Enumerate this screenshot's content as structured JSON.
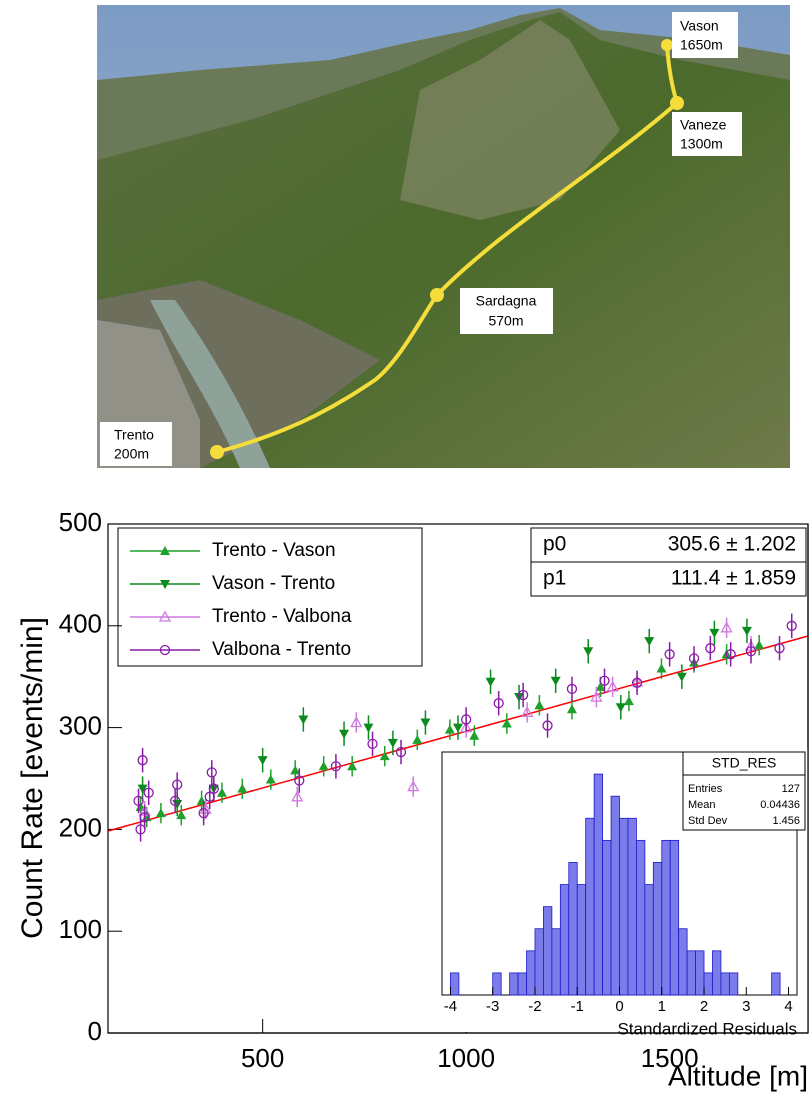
{
  "photo": {
    "labels": [
      {
        "name": "Vason",
        "altitude": "1650m"
      },
      {
        "name": "Vaneze",
        "altitude": "1300m"
      },
      {
        "name": "Sardagna",
        "altitude": "570m"
      },
      {
        "name": "Trento",
        "altitude": "200m"
      }
    ]
  },
  "chart_data": [
    {
      "type": "scatter",
      "xlabel": "Altitude [m]",
      "ylabel": "Count Rate [events/min]",
      "xlim": [
        120,
        1840
      ],
      "ylim": [
        0,
        500
      ],
      "xticks": [
        500,
        1000,
        1500
      ],
      "yticks": [
        0,
        100,
        200,
        300,
        400,
        500
      ],
      "series": [
        {
          "name": "Trento - Vason",
          "color": "#1fa02a",
          "marker": "triangle-up",
          "x": [
            200,
            215,
            250,
            300,
            350,
            400,
            450,
            520,
            580,
            650,
            720,
            800,
            880,
            960,
            1020,
            1100,
            1180,
            1260,
            1330,
            1400,
            1480,
            1560,
            1640,
            1720
          ],
          "values": [
            222,
            212,
            216,
            214,
            228,
            236,
            240,
            249,
            258,
            262,
            262,
            272,
            288,
            298,
            292,
            304,
            322,
            318,
            340,
            326,
            358,
            364,
            372,
            381
          ],
          "errors": [
            10,
            10,
            10,
            10,
            10,
            10,
            10,
            10,
            10,
            10,
            10,
            10,
            10,
            10,
            10,
            10,
            10,
            10,
            10,
            10,
            10,
            10,
            10,
            10
          ]
        },
        {
          "name": "Vason - Trento",
          "color": "#0b8a1e",
          "marker": "triangle-down",
          "x": [
            205,
            290,
            380,
            500,
            600,
            700,
            760,
            820,
            900,
            980,
            1060,
            1130,
            1220,
            1300,
            1380,
            1450,
            1530,
            1610,
            1690
          ],
          "values": [
            240,
            225,
            240,
            268,
            308,
            294,
            300,
            285,
            305,
            300,
            345,
            330,
            346,
            375,
            320,
            385,
            350,
            393,
            395
          ],
          "errors": [
            12,
            12,
            12,
            12,
            12,
            12,
            12,
            12,
            12,
            12,
            12,
            12,
            12,
            12,
            12,
            12,
            12,
            12,
            12
          ]
        },
        {
          "name": "Trento - Valbona",
          "color": "#d07ae0",
          "marker": "triangle-up-open",
          "x": [
            210,
            360,
            585,
            730,
            870,
            1000,
            1150,
            1320,
            1360,
            1420,
            1640,
            1700
          ],
          "values": [
            218,
            220,
            232,
            305,
            242,
            300,
            315,
            330,
            340,
            345,
            398,
            380
          ],
          "errors": [
            10,
            10,
            10,
            10,
            10,
            10,
            10,
            10,
            10,
            10,
            10,
            10
          ]
        },
        {
          "name": "Valbona - Trento",
          "color": "#8a1aa8",
          "marker": "circle-open",
          "x": [
            195,
            200,
            205,
            210,
            220,
            285,
            290,
            355,
            370,
            375,
            380,
            590,
            680,
            770,
            840,
            920,
            1000,
            1080,
            1140,
            1200,
            1260,
            1340,
            1420,
            1500,
            1560,
            1600,
            1650,
            1700,
            1770,
            1800
          ],
          "values": [
            228,
            200,
            268,
            212,
            236,
            228,
            244,
            216,
            232,
            256,
            240,
            248,
            262,
            284,
            276,
            264,
            308,
            324,
            332,
            302,
            338,
            346,
            344,
            372,
            368,
            378,
            372,
            375,
            378,
            400
          ],
          "errors": [
            12,
            12,
            12,
            12,
            12,
            12,
            12,
            12,
            12,
            12,
            12,
            12,
            12,
            12,
            12,
            12,
            12,
            12,
            12,
            12,
            12,
            12,
            12,
            12,
            12,
            12,
            12,
            12,
            12,
            12
          ]
        }
      ],
      "fit": {
        "color": "#ff0000",
        "x": [
          120,
          1840
        ],
        "values": [
          198.4,
          390
        ]
      },
      "fit_params": [
        {
          "name": "p0",
          "text": "305.6 ± 1.202"
        },
        {
          "name": "p1",
          "text": "111.4 ± 1.859"
        }
      ]
    },
    {
      "type": "histogram",
      "title": "STD_RES",
      "xlabel": "Standardized Residuals",
      "color": "#7b7bea",
      "edge_color": "#1a1acc",
      "xlim": [
        -4.2,
        4.2
      ],
      "ylim": [
        0,
        11
      ],
      "xticks": [
        -4,
        -3,
        -2,
        -1,
        0,
        1,
        2,
        3,
        4
      ],
      "bins": [
        -4,
        -3.8,
        -3.6,
        -3.4,
        -3.2,
        -3,
        -2.8,
        -2.6,
        -2.4,
        -2.2,
        -2,
        -1.8,
        -1.6,
        -1.4,
        -1.2,
        -1,
        -0.8,
        -0.6,
        -0.4,
        -0.2,
        0,
        0.2,
        0.4,
        0.6,
        0.8,
        1,
        1.2,
        1.4,
        1.6,
        1.8,
        2,
        2.2,
        2.4,
        2.6,
        2.8,
        3,
        3.2,
        3.4,
        3.6,
        3.8,
        4
      ],
      "counts": [
        1,
        0,
        0,
        0,
        0,
        1,
        0,
        1,
        1,
        2,
        3,
        4,
        3,
        5,
        6,
        5,
        8,
        10,
        7,
        9,
        8,
        8,
        7,
        5,
        6,
        7,
        7,
        3,
        2,
        2,
        1,
        2,
        1,
        1,
        0,
        0,
        0,
        0,
        1,
        0
      ],
      "stats": [
        {
          "label": "Entries",
          "value": 127
        },
        {
          "label": "Mean",
          "value": 0.04436
        },
        {
          "label": "Std Dev",
          "value": 1.456
        }
      ]
    }
  ]
}
